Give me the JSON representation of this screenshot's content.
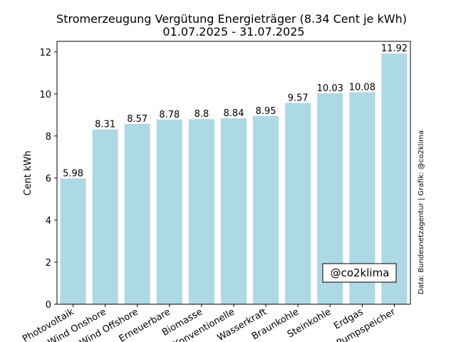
{
  "chart_data": {
    "type": "bar",
    "title": "Stromerzeugung Vergütung Energieträger (8.34 Cent je kWh)",
    "subtitle": "01.07.2025 - 31.07.2025",
    "xlabel": "",
    "ylabel": "Cent kWh",
    "ylim": [
      0,
      12.5
    ],
    "yticks": [
      0,
      2,
      4,
      6,
      8,
      10,
      12
    ],
    "grid": false,
    "categories": [
      "Photovoltaik",
      "Wind Onshore",
      "Wind Offshore",
      "Erneuerbare",
      "Biomasse",
      "Konventionelle",
      "Wasserkraft",
      "Braunkohle",
      "Steinkohle",
      "Erdgas",
      "Pumpspeicher"
    ],
    "values": [
      5.98,
      8.31,
      8.57,
      8.78,
      8.8,
      8.84,
      8.95,
      9.57,
      10.03,
      10.08,
      11.92
    ],
    "value_labels": [
      "5.98",
      "8.31",
      "8.57",
      "8.78",
      "8.8",
      "8.84",
      "8.95",
      "9.57",
      "10.03",
      "10.08",
      "11.92"
    ],
    "bar_color": "#add8e6",
    "watermark": "@co2klima",
    "source_note": "Data: Bundesnetzagentur | Grafik: @co2klima"
  }
}
